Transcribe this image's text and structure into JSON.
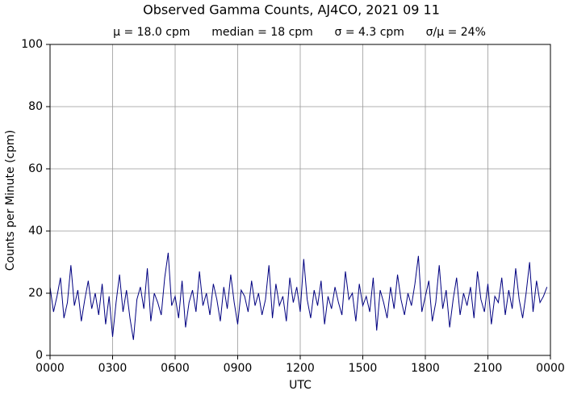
{
  "chart_data": {
    "type": "line",
    "title": "Observed Gamma Counts, AJ4CO, 2021 09 11",
    "subtitle": "μ = 18.0 cpm      median = 18 cpm      σ = 4.3 cpm      σ/μ = 24%",
    "x_label": "UTC",
    "y_label": "Counts per Minute (cpm)",
    "x": [
      0,
      10,
      20,
      30,
      40,
      50,
      60,
      70,
      80,
      90,
      100,
      110,
      120,
      130,
      140,
      150,
      160,
      170,
      180,
      190,
      200,
      210,
      220,
      230,
      240,
      250,
      260,
      270,
      280,
      290,
      300,
      310,
      320,
      330,
      340,
      350,
      360,
      370,
      380,
      390,
      400,
      410,
      420,
      430,
      440,
      450,
      460,
      470,
      480,
      490,
      500,
      510,
      520,
      530,
      540,
      550,
      560,
      570,
      580,
      590,
      600,
      610,
      620,
      630,
      640,
      650,
      660,
      670,
      680,
      690,
      700,
      710,
      720,
      730,
      740,
      750,
      760,
      770,
      780,
      790,
      800,
      810,
      820,
      830,
      840,
      850,
      860,
      870,
      880,
      890,
      900,
      910,
      920,
      930,
      940,
      950,
      960,
      970,
      980,
      990,
      1000,
      1010,
      1020,
      1030,
      1040,
      1050,
      1060,
      1070,
      1080,
      1090,
      1100,
      1110,
      1120,
      1130,
      1140,
      1150,
      1160,
      1170,
      1180,
      1190,
      1200,
      1210,
      1220,
      1230,
      1240,
      1250,
      1260,
      1270,
      1280,
      1290,
      1300,
      1310,
      1320,
      1330,
      1340,
      1350,
      1360,
      1370,
      1380,
      1390,
      1400,
      1410,
      1420,
      1430
    ],
    "values": [
      22,
      14,
      19,
      25,
      12,
      17,
      29,
      16,
      21,
      11,
      18,
      24,
      15,
      20,
      13,
      23,
      10,
      19,
      6,
      17,
      26,
      14,
      21,
      12,
      5,
      18,
      22,
      15,
      28,
      11,
      20,
      17,
      13,
      25,
      33,
      16,
      19,
      12,
      24,
      9,
      17,
      21,
      14,
      27,
      16,
      20,
      13,
      23,
      18,
      11,
      22,
      15,
      26,
      17,
      10,
      21,
      19,
      14,
      24,
      16,
      20,
      13,
      18,
      29,
      12,
      23,
      16,
      19,
      11,
      25,
      17,
      22,
      14,
      31,
      18,
      12,
      21,
      16,
      24,
      10,
      19,
      15,
      22,
      17,
      13,
      27,
      18,
      20,
      11,
      23,
      16,
      19,
      14,
      25,
      8,
      21,
      17,
      12,
      22,
      15,
      26,
      18,
      13,
      20,
      16,
      23,
      32,
      14,
      19,
      24,
      11,
      17,
      29,
      15,
      21,
      9,
      18,
      25,
      13,
      20,
      16,
      22,
      12,
      27,
      18,
      14,
      23,
      10,
      19,
      17,
      25,
      13,
      21,
      15,
      28,
      18,
      12,
      20,
      30,
      14,
      24,
      17,
      19,
      22
    ],
    "color": "#000080",
    "xlim": [
      0,
      1440
    ],
    "xticks": [
      {
        "value": 0,
        "label": "0000"
      },
      {
        "value": 180,
        "label": "0300"
      },
      {
        "value": 360,
        "label": "0600"
      },
      {
        "value": 540,
        "label": "0900"
      },
      {
        "value": 720,
        "label": "1200"
      },
      {
        "value": 900,
        "label": "1500"
      },
      {
        "value": 1080,
        "label": "1800"
      },
      {
        "value": 1260,
        "label": "2100"
      },
      {
        "value": 1440,
        "label": "0000"
      }
    ],
    "ylim": [
      0,
      100
    ],
    "yticks": [
      0,
      20,
      40,
      60,
      80,
      100
    ],
    "grid": true
  }
}
